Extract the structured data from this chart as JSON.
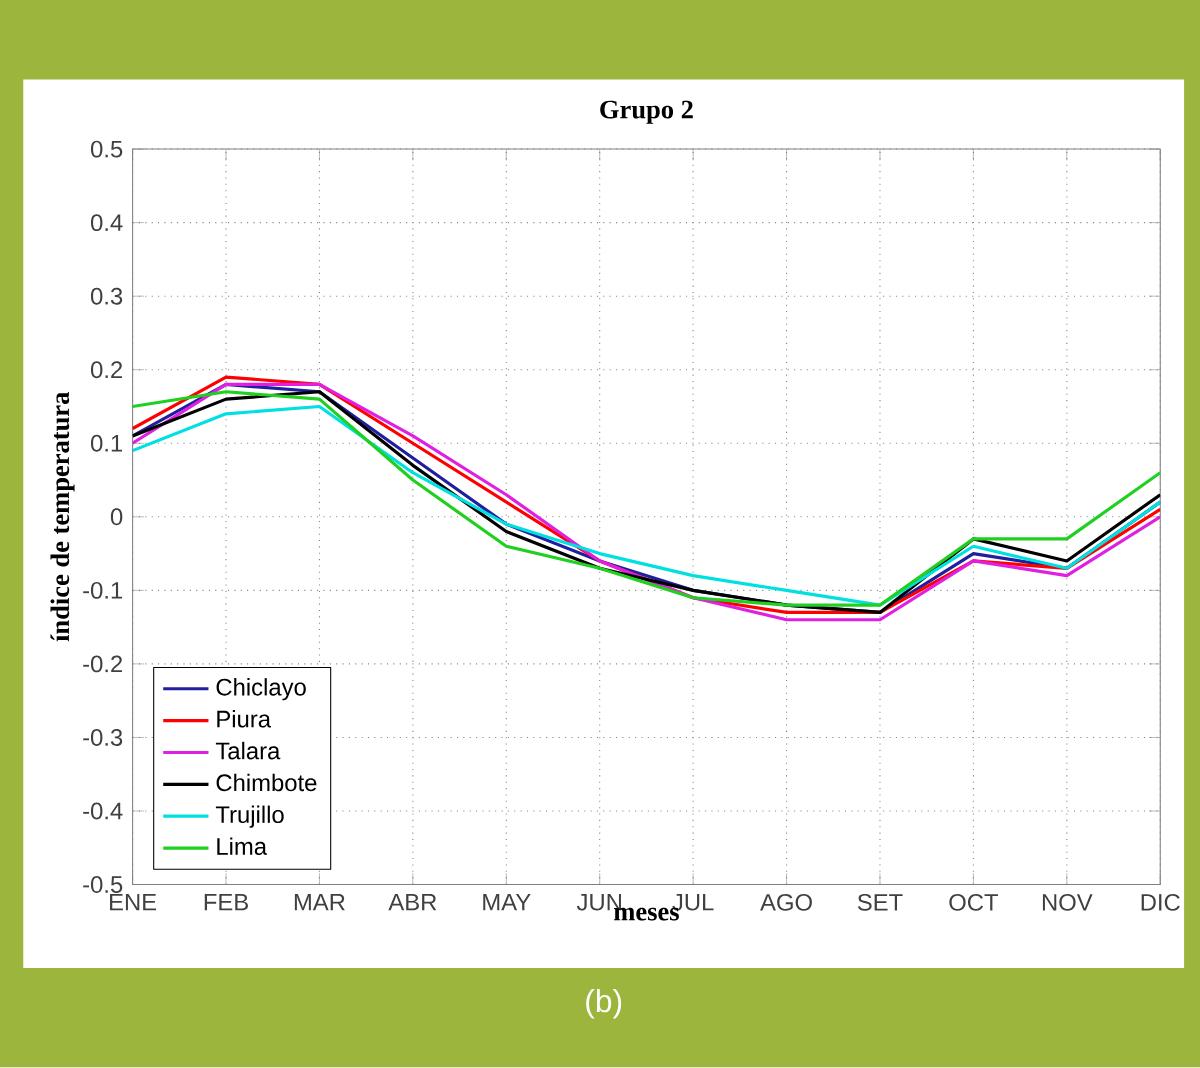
{
  "chart_data": {
    "type": "line",
    "title": "Grupo 2",
    "xlabel": "meses",
    "ylabel": "índice de temperatura",
    "categories": [
      "ENE",
      "FEB",
      "MAR",
      "ABR",
      "MAY",
      "JUN",
      "JUL",
      "AGO",
      "SET",
      "OCT",
      "NOV",
      "DIC"
    ],
    "series": [
      {
        "name": "Chiclayo",
        "color": "#1f1f9f",
        "values": [
          0.11,
          0.18,
          0.17,
          0.08,
          -0.01,
          -0.06,
          -0.1,
          -0.12,
          -0.13,
          -0.05,
          -0.07,
          0.02
        ]
      },
      {
        "name": "Piura",
        "color": "#ff0000",
        "values": [
          0.12,
          0.19,
          0.18,
          0.1,
          0.02,
          -0.06,
          -0.11,
          -0.13,
          -0.13,
          -0.06,
          -0.07,
          0.01
        ]
      },
      {
        "name": "Talara",
        "color": "#e020e0",
        "values": [
          0.1,
          0.18,
          0.18,
          0.11,
          0.03,
          -0.06,
          -0.11,
          -0.14,
          -0.14,
          -0.06,
          -0.08,
          0.0
        ]
      },
      {
        "name": "Chimbote",
        "color": "#000000",
        "values": [
          0.11,
          0.16,
          0.17,
          0.07,
          -0.02,
          -0.07,
          -0.1,
          -0.12,
          -0.13,
          -0.03,
          -0.06,
          0.03
        ]
      },
      {
        "name": "Trujillo",
        "color": "#00e0e0",
        "values": [
          0.09,
          0.14,
          0.15,
          0.06,
          -0.01,
          -0.05,
          -0.08,
          -0.1,
          -0.12,
          -0.04,
          -0.07,
          0.02
        ]
      },
      {
        "name": "Lima",
        "color": "#20d020",
        "values": [
          0.15,
          0.17,
          0.16,
          0.05,
          -0.04,
          -0.07,
          -0.11,
          -0.12,
          -0.12,
          -0.03,
          -0.03,
          0.06
        ]
      }
    ],
    "ylim": [
      -0.5,
      0.5
    ],
    "yticks": [
      -0.5,
      -0.4,
      -0.3,
      -0.2,
      -0.1,
      0,
      0.1,
      0.2,
      0.3,
      0.4,
      0.5
    ],
    "grid": true,
    "legend": "bottom left",
    "marker": "none",
    "line_style": "solid",
    "annotations": [
      "(b)"
    ]
  }
}
